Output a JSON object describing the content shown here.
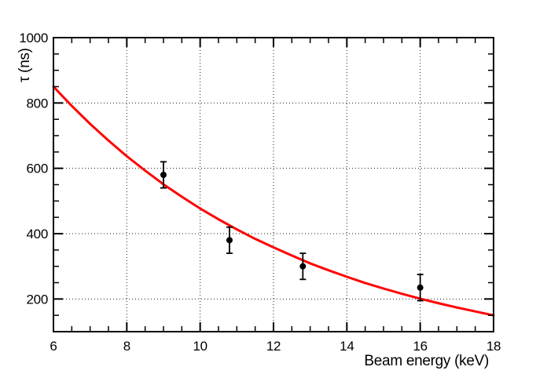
{
  "figure": {
    "background": "#ffffff",
    "frame_color": "#000000",
    "grid_color": "#1a1a1a",
    "curve_color": "#ff0000",
    "marker_color": "#000000"
  },
  "chart_data": {
    "type": "line",
    "title": "",
    "xlabel": "Beam energy (keV)",
    "ylabel": "τ (ns)",
    "xlim": [
      6,
      18
    ],
    "ylim": [
      100,
      1000
    ],
    "xticks": [
      6,
      8,
      10,
      12,
      14,
      16,
      18
    ],
    "yticks": [
      200,
      400,
      600,
      800,
      1000
    ],
    "x_minor_step": 0.5,
    "y_minor_step": 50,
    "grid": {
      "style": "dotted",
      "at_major_ticks": true
    },
    "legend": null,
    "series": [
      {
        "name": "exponential-fit-curve",
        "kind": "curve",
        "color": "#ff0000",
        "stroke_width": 3,
        "x": [
          6,
          6.5,
          7,
          7.5,
          8,
          8.5,
          9,
          9.5,
          10,
          10.5,
          11,
          11.5,
          12,
          12.5,
          13,
          13.5,
          14,
          14.5,
          15,
          15.5,
          16,
          16.5,
          17,
          17.5,
          18
        ],
        "y": [
          850,
          791,
          736,
          685,
          637,
          593,
          551,
          513,
          477,
          444,
          413,
          384,
          358,
          333,
          309,
          288,
          268,
          249,
          232,
          216,
          201,
          187,
          174,
          162,
          150
        ]
      },
      {
        "name": "measured-lifetime-points",
        "kind": "scatter",
        "marker": "filled-circle",
        "color": "#000000",
        "points": [
          {
            "x": 9.0,
            "y": 580,
            "yerr": 40
          },
          {
            "x": 10.8,
            "y": 380,
            "yerr": 40
          },
          {
            "x": 12.8,
            "y": 300,
            "yerr": 40
          },
          {
            "x": 16.0,
            "y": 235,
            "yerr": 40
          }
        ]
      }
    ]
  }
}
